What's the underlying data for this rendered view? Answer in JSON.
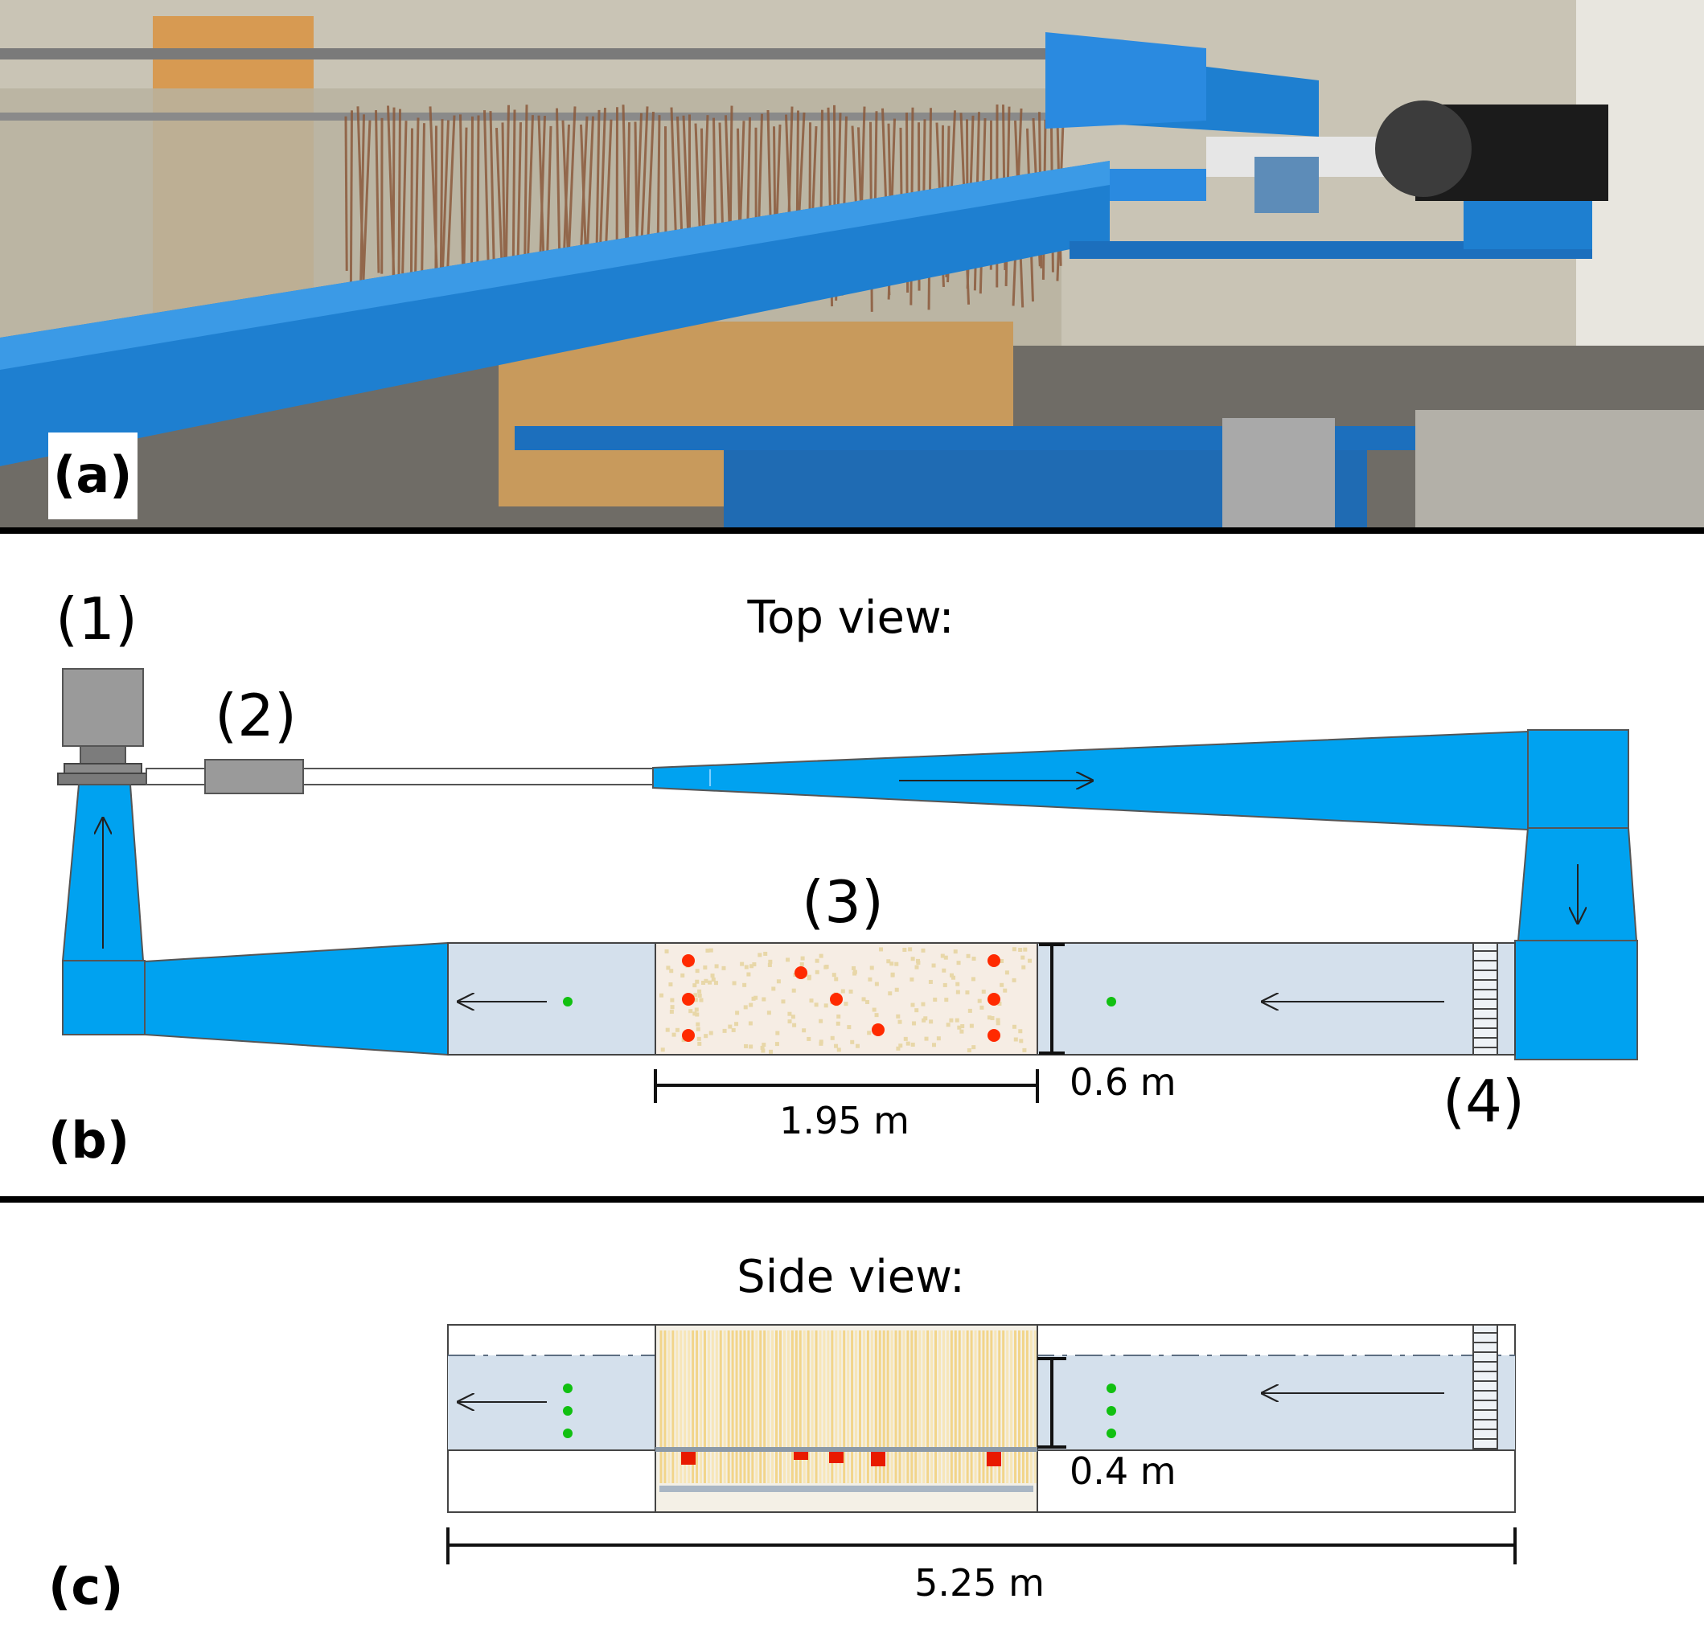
{
  "panels": {
    "a": "(a)",
    "b": "(b)",
    "c": "(c)"
  },
  "top_view": {
    "title": "Top view:",
    "labels": [
      "(1)",
      "(2)",
      "(3)",
      "(4)"
    ],
    "dim_length": "1.95 m",
    "dim_width": "0.6 m"
  },
  "side_view": {
    "title": "Side view:",
    "dim_depth": "0.4 m",
    "dim_total": "5.25 m"
  },
  "colors": {
    "duct_blue": "#00a2f0",
    "flume_fill": "#d4e0ec",
    "probe_red": "#ff2a00",
    "sensor_green": "#11c011",
    "canopy_yellow": "#f2d58a",
    "pump_gray": "#9a9a9a"
  }
}
